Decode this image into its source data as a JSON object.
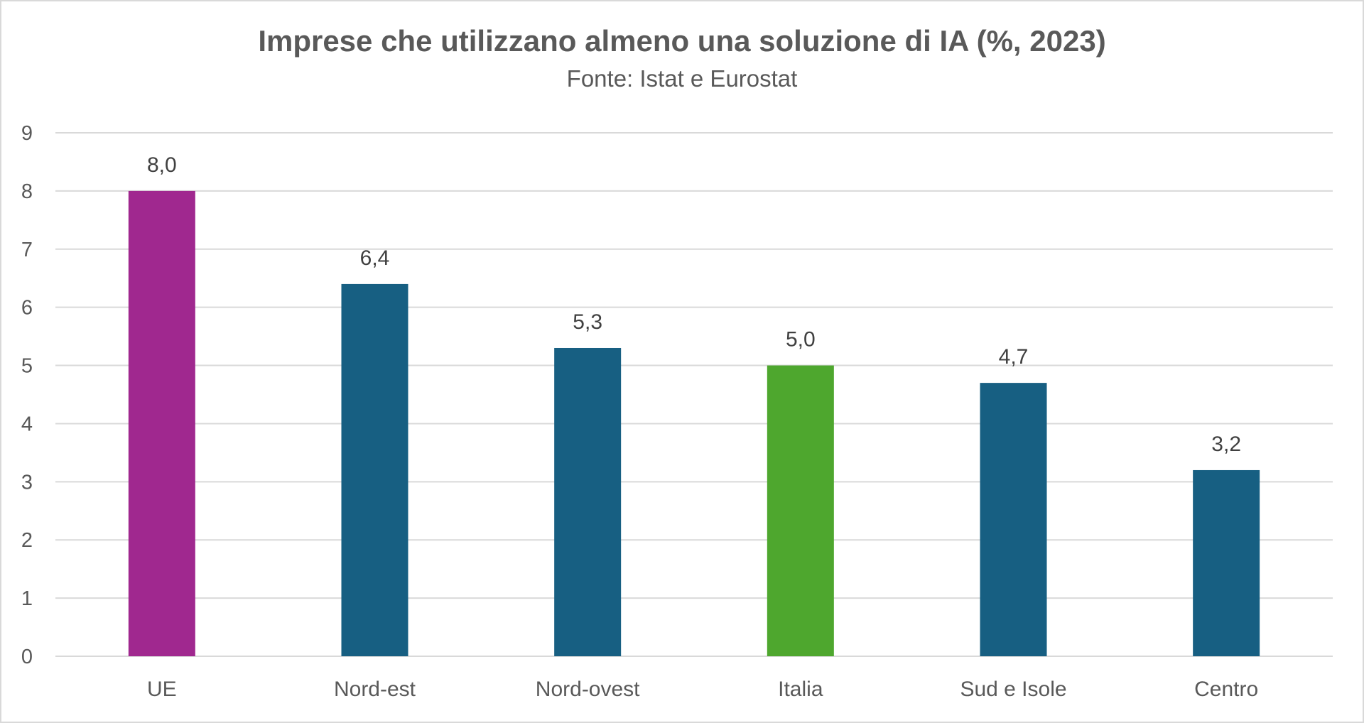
{
  "title": "Imprese che utilizzano almeno una soluzione di IA (%, 2023)",
  "subtitle": "Fonte: Istat e Eurostat",
  "chart_data": {
    "type": "bar",
    "categories": [
      "UE",
      "Nord-est",
      "Nord-ovest",
      "Italia",
      "Sud e Isole",
      "Centro"
    ],
    "values": [
      8.0,
      6.4,
      5.3,
      5.0,
      4.7,
      3.2
    ],
    "data_labels": [
      "8,0",
      "6,4",
      "5,3",
      "5,0",
      "4,7",
      "3,2"
    ],
    "bar_colors": [
      "#A0288F",
      "#175F82",
      "#175F82",
      "#4EA72E",
      "#175F82",
      "#175F82"
    ],
    "ylim": [
      0,
      9
    ],
    "yticks": [
      0,
      1,
      2,
      3,
      4,
      5,
      6,
      7,
      8,
      9
    ],
    "grid": true,
    "legend": "none",
    "xlabel": "",
    "ylabel": ""
  }
}
